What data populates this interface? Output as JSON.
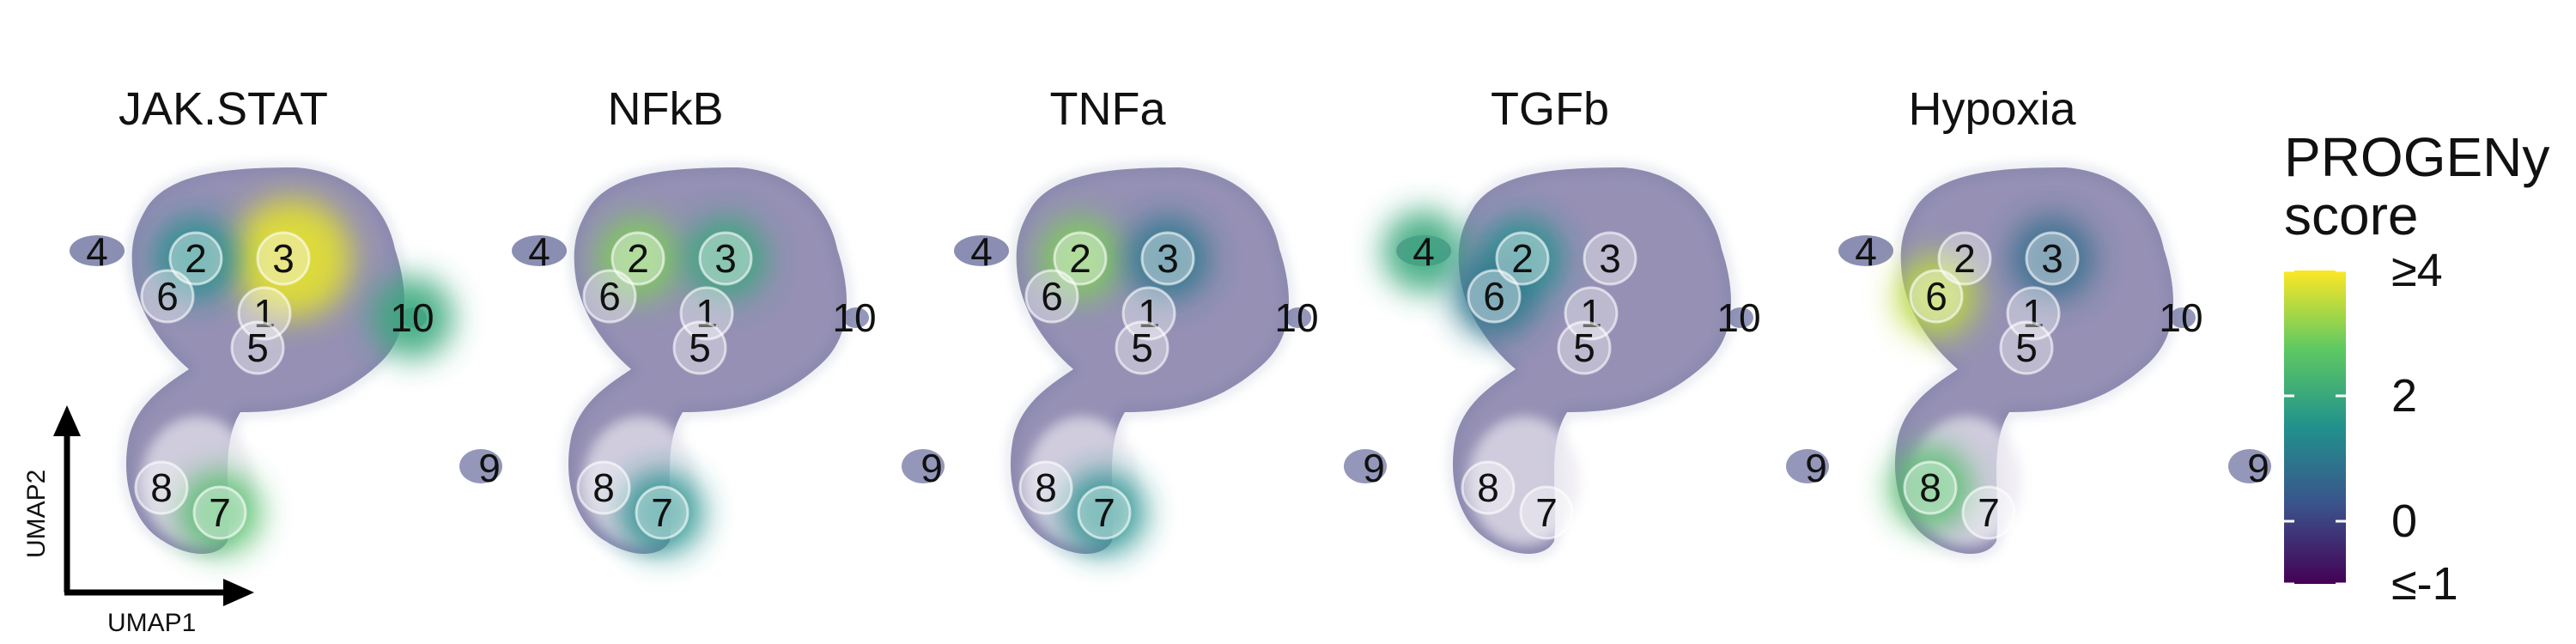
{
  "chart_data": {
    "type": "scatter",
    "panels": [
      {
        "title": "JAK.STAT",
        "hotspots": [
          {
            "cluster": "3",
            "level": 3.8
          },
          {
            "cluster": "2",
            "level": 1.5
          },
          {
            "cluster": "10",
            "level": 2.0
          },
          {
            "cluster": "7",
            "level": 2.5
          }
        ]
      },
      {
        "title": "NFkB",
        "hotspots": [
          {
            "cluster": "2",
            "level": 3.0
          },
          {
            "cluster": "3",
            "level": 2.0
          },
          {
            "cluster": "7",
            "level": 1.5
          }
        ]
      },
      {
        "title": "TNFa",
        "hotspots": [
          {
            "cluster": "2",
            "level": 3.0
          },
          {
            "cluster": "3",
            "level": 1.0
          },
          {
            "cluster": "7",
            "level": 1.5
          }
        ]
      },
      {
        "title": "TGFb",
        "hotspots": [
          {
            "cluster": "4",
            "level": 2.0
          },
          {
            "cluster": "2",
            "level": 1.5
          },
          {
            "cluster": "6",
            "level": 1.0
          }
        ]
      },
      {
        "title": "Hypoxia",
        "hotspots": [
          {
            "cluster": "6",
            "level": 3.5
          },
          {
            "cluster": "8",
            "level": 2.5
          },
          {
            "cluster": "3",
            "level": 0.8
          }
        ]
      }
    ],
    "cluster_labels": [
      "1",
      "2",
      "3",
      "4",
      "5",
      "6",
      "7",
      "8",
      "9",
      "10"
    ],
    "xlabel": "UMAP1",
    "ylabel": "UMAP2",
    "legend": {
      "title_line1": "PROGENy",
      "title_line2": "score",
      "ticks": [
        "≥4",
        "2",
        "0",
        "≤-1"
      ],
      "range": [
        -1,
        4
      ],
      "tick_values": [
        4,
        2,
        0,
        -1
      ],
      "colormap": [
        "#440154",
        "#3b528b",
        "#21918c",
        "#5ec962",
        "#fde725"
      ]
    }
  }
}
